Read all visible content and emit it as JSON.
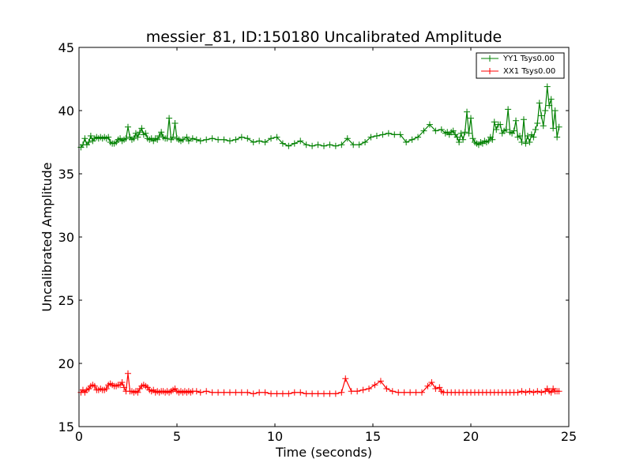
{
  "chart_data": {
    "type": "line",
    "title": "messier_81, ID:150180 Uncalibrated Amplitude",
    "xlabel": "Time (seconds)",
    "ylabel": "Uncalibrated Amplitude",
    "xlim": [
      0,
      25
    ],
    "ylim": [
      15,
      45
    ],
    "xticks": [
      0,
      5,
      10,
      15,
      20,
      25
    ],
    "yticks": [
      15,
      20,
      25,
      30,
      35,
      40,
      45
    ],
    "grid": false,
    "legend_position": "top-right",
    "series": [
      {
        "name": "YY1 Tsys0.00",
        "color": "#008000",
        "marker": "plus",
        "points": [
          [
            0.1,
            37.1
          ],
          [
            0.2,
            37.3
          ],
          [
            0.3,
            37.8
          ],
          [
            0.4,
            37.3
          ],
          [
            0.5,
            37.5
          ],
          [
            0.6,
            38.0
          ],
          [
            0.7,
            37.6
          ],
          [
            0.8,
            37.8
          ],
          [
            0.9,
            37.9
          ],
          [
            1.0,
            37.8
          ],
          [
            1.1,
            37.9
          ],
          [
            1.2,
            37.8
          ],
          [
            1.3,
            37.9
          ],
          [
            1.4,
            37.8
          ],
          [
            1.5,
            37.9
          ],
          [
            1.6,
            37.5
          ],
          [
            1.7,
            37.4
          ],
          [
            1.8,
            37.4
          ],
          [
            1.9,
            37.5
          ],
          [
            2.0,
            37.7
          ],
          [
            2.1,
            37.8
          ],
          [
            2.2,
            37.6
          ],
          [
            2.3,
            37.7
          ],
          [
            2.4,
            37.8
          ],
          [
            2.5,
            38.7
          ],
          [
            2.6,
            37.9
          ],
          [
            2.7,
            37.7
          ],
          [
            2.8,
            37.8
          ],
          [
            2.9,
            38.2
          ],
          [
            3.0,
            37.9
          ],
          [
            3.1,
            38.3
          ],
          [
            3.2,
            38.6
          ],
          [
            3.3,
            38.1
          ],
          [
            3.4,
            38.2
          ],
          [
            3.5,
            37.8
          ],
          [
            3.6,
            37.7
          ],
          [
            3.7,
            37.8
          ],
          [
            3.8,
            37.6
          ],
          [
            3.9,
            37.8
          ],
          [
            4.0,
            37.7
          ],
          [
            4.1,
            38.0
          ],
          [
            4.2,
            38.3
          ],
          [
            4.3,
            37.9
          ],
          [
            4.4,
            37.8
          ],
          [
            4.5,
            37.8
          ],
          [
            4.6,
            39.4
          ],
          [
            4.7,
            37.7
          ],
          [
            4.8,
            37.9
          ],
          [
            4.9,
            39.0
          ],
          [
            5.0,
            37.8
          ],
          [
            5.1,
            37.7
          ],
          [
            5.2,
            37.6
          ],
          [
            5.3,
            37.7
          ],
          [
            5.5,
            37.9
          ],
          [
            5.6,
            37.6
          ],
          [
            5.8,
            37.8
          ],
          [
            6.0,
            37.7
          ],
          [
            6.2,
            37.6
          ],
          [
            6.5,
            37.7
          ],
          [
            6.8,
            37.8
          ],
          [
            7.1,
            37.7
          ],
          [
            7.4,
            37.7
          ],
          [
            7.7,
            37.6
          ],
          [
            8.0,
            37.7
          ],
          [
            8.3,
            37.9
          ],
          [
            8.6,
            37.8
          ],
          [
            8.9,
            37.5
          ],
          [
            9.2,
            37.6
          ],
          [
            9.5,
            37.5
          ],
          [
            9.8,
            37.8
          ],
          [
            10.1,
            37.9
          ],
          [
            10.4,
            37.4
          ],
          [
            10.7,
            37.2
          ],
          [
            11.0,
            37.4
          ],
          [
            11.3,
            37.6
          ],
          [
            11.6,
            37.3
          ],
          [
            11.9,
            37.2
          ],
          [
            12.2,
            37.3
          ],
          [
            12.5,
            37.2
          ],
          [
            12.8,
            37.3
          ],
          [
            13.1,
            37.2
          ],
          [
            13.4,
            37.3
          ],
          [
            13.7,
            37.8
          ],
          [
            14.0,
            37.3
          ],
          [
            14.3,
            37.3
          ],
          [
            14.6,
            37.5
          ],
          [
            14.9,
            37.9
          ],
          [
            15.2,
            38.0
          ],
          [
            15.5,
            38.1
          ],
          [
            15.8,
            38.2
          ],
          [
            16.1,
            38.1
          ],
          [
            16.4,
            38.1
          ],
          [
            16.7,
            37.5
          ],
          [
            17.0,
            37.7
          ],
          [
            17.3,
            37.9
          ],
          [
            17.6,
            38.4
          ],
          [
            17.9,
            38.9
          ],
          [
            18.2,
            38.4
          ],
          [
            18.5,
            38.5
          ],
          [
            18.7,
            38.2
          ],
          [
            18.8,
            38.3
          ],
          [
            18.9,
            38.1
          ],
          [
            19.0,
            38.3
          ],
          [
            19.1,
            38.4
          ],
          [
            19.2,
            38.1
          ],
          [
            19.3,
            37.9
          ],
          [
            19.4,
            37.5
          ],
          [
            19.5,
            38.2
          ],
          [
            19.6,
            37.7
          ],
          [
            19.7,
            38.3
          ],
          [
            19.8,
            39.9
          ],
          [
            19.9,
            38.2
          ],
          [
            20.0,
            39.4
          ],
          [
            20.1,
            37.8
          ],
          [
            20.2,
            37.5
          ],
          [
            20.3,
            37.4
          ],
          [
            20.4,
            37.3
          ],
          [
            20.5,
            37.5
          ],
          [
            20.6,
            37.4
          ],
          [
            20.7,
            37.6
          ],
          [
            20.8,
            37.5
          ],
          [
            20.9,
            37.6
          ],
          [
            21.0,
            37.9
          ],
          [
            21.1,
            37.7
          ],
          [
            21.2,
            39.1
          ],
          [
            21.3,
            38.5
          ],
          [
            21.4,
            38.9
          ],
          [
            21.5,
            38.9
          ],
          [
            21.6,
            38.2
          ],
          [
            21.7,
            38.4
          ],
          [
            21.8,
            38.5
          ],
          [
            21.9,
            40.1
          ],
          [
            22.0,
            38.3
          ],
          [
            22.1,
            38.2
          ],
          [
            22.2,
            38.4
          ],
          [
            22.3,
            39.2
          ],
          [
            22.4,
            37.9
          ],
          [
            22.5,
            38.0
          ],
          [
            22.6,
            37.5
          ],
          [
            22.7,
            39.3
          ],
          [
            22.8,
            37.4
          ],
          [
            22.9,
            38.0
          ],
          [
            23.0,
            37.5
          ],
          [
            23.1,
            38.1
          ],
          [
            23.2,
            37.9
          ],
          [
            23.3,
            38.5
          ],
          [
            23.4,
            39.0
          ],
          [
            23.5,
            40.6
          ],
          [
            23.6,
            39.6
          ],
          [
            23.7,
            38.8
          ],
          [
            23.8,
            40.0
          ],
          [
            23.9,
            41.9
          ],
          [
            24.0,
            40.4
          ],
          [
            24.1,
            40.9
          ],
          [
            24.2,
            38.6
          ],
          [
            24.3,
            40.0
          ],
          [
            24.4,
            37.9
          ],
          [
            24.5,
            38.7
          ]
        ]
      },
      {
        "name": "XX1 Tsys0.00",
        "color": "#ff0000",
        "marker": "plus",
        "points": [
          [
            0.1,
            17.7
          ],
          [
            0.2,
            17.9
          ],
          [
            0.3,
            17.7
          ],
          [
            0.4,
            17.9
          ],
          [
            0.5,
            18.0
          ],
          [
            0.6,
            18.2
          ],
          [
            0.7,
            18.3
          ],
          [
            0.8,
            18.2
          ],
          [
            0.9,
            17.9
          ],
          [
            1.0,
            17.9
          ],
          [
            1.1,
            18.0
          ],
          [
            1.2,
            17.9
          ],
          [
            1.3,
            17.9
          ],
          [
            1.4,
            18.0
          ],
          [
            1.5,
            18.3
          ],
          [
            1.6,
            18.4
          ],
          [
            1.7,
            18.3
          ],
          [
            1.8,
            18.2
          ],
          [
            1.9,
            18.2
          ],
          [
            2.0,
            18.3
          ],
          [
            2.1,
            18.3
          ],
          [
            2.2,
            18.5
          ],
          [
            2.3,
            18.1
          ],
          [
            2.4,
            17.8
          ],
          [
            2.5,
            19.2
          ],
          [
            2.6,
            17.8
          ],
          [
            2.7,
            17.8
          ],
          [
            2.8,
            17.7
          ],
          [
            2.9,
            17.8
          ],
          [
            3.0,
            17.7
          ],
          [
            3.1,
            18.0
          ],
          [
            3.2,
            18.2
          ],
          [
            3.3,
            18.3
          ],
          [
            3.4,
            18.2
          ],
          [
            3.5,
            18.1
          ],
          [
            3.6,
            17.9
          ],
          [
            3.7,
            17.8
          ],
          [
            3.8,
            17.9
          ],
          [
            3.9,
            17.7
          ],
          [
            4.0,
            17.8
          ],
          [
            4.1,
            17.7
          ],
          [
            4.2,
            17.8
          ],
          [
            4.3,
            17.8
          ],
          [
            4.4,
            17.7
          ],
          [
            4.5,
            17.8
          ],
          [
            4.6,
            17.7
          ],
          [
            4.7,
            17.8
          ],
          [
            4.8,
            17.9
          ],
          [
            4.9,
            18.0
          ],
          [
            5.0,
            17.8
          ],
          [
            5.1,
            17.7
          ],
          [
            5.2,
            17.8
          ],
          [
            5.3,
            17.7
          ],
          [
            5.4,
            17.8
          ],
          [
            5.5,
            17.7
          ],
          [
            5.6,
            17.8
          ],
          [
            5.7,
            17.7
          ],
          [
            5.8,
            17.8
          ],
          [
            6.0,
            17.8
          ],
          [
            6.2,
            17.7
          ],
          [
            6.5,
            17.8
          ],
          [
            6.8,
            17.7
          ],
          [
            7.1,
            17.7
          ],
          [
            7.4,
            17.7
          ],
          [
            7.7,
            17.7
          ],
          [
            8.0,
            17.7
          ],
          [
            8.3,
            17.7
          ],
          [
            8.6,
            17.7
          ],
          [
            8.9,
            17.6
          ],
          [
            9.2,
            17.7
          ],
          [
            9.5,
            17.7
          ],
          [
            9.8,
            17.6
          ],
          [
            10.1,
            17.6
          ],
          [
            10.4,
            17.6
          ],
          [
            10.7,
            17.6
          ],
          [
            11.0,
            17.7
          ],
          [
            11.3,
            17.7
          ],
          [
            11.6,
            17.6
          ],
          [
            11.9,
            17.6
          ],
          [
            12.2,
            17.6
          ],
          [
            12.5,
            17.6
          ],
          [
            12.8,
            17.6
          ],
          [
            13.1,
            17.6
          ],
          [
            13.4,
            17.7
          ],
          [
            13.6,
            18.8
          ],
          [
            13.9,
            17.8
          ],
          [
            14.2,
            17.8
          ],
          [
            14.5,
            17.9
          ],
          [
            14.8,
            18.0
          ],
          [
            15.1,
            18.3
          ],
          [
            15.4,
            18.6
          ],
          [
            15.7,
            18.0
          ],
          [
            16.0,
            17.8
          ],
          [
            16.3,
            17.7
          ],
          [
            16.6,
            17.7
          ],
          [
            16.9,
            17.7
          ],
          [
            17.2,
            17.7
          ],
          [
            17.5,
            17.7
          ],
          [
            17.8,
            18.2
          ],
          [
            18.0,
            18.5
          ],
          [
            18.2,
            18.0
          ],
          [
            18.4,
            18.1
          ],
          [
            18.5,
            17.8
          ],
          [
            18.6,
            17.7
          ],
          [
            18.8,
            17.7
          ],
          [
            19.0,
            17.7
          ],
          [
            19.2,
            17.7
          ],
          [
            19.4,
            17.7
          ],
          [
            19.6,
            17.7
          ],
          [
            19.8,
            17.7
          ],
          [
            20.0,
            17.7
          ],
          [
            20.2,
            17.7
          ],
          [
            20.4,
            17.7
          ],
          [
            20.6,
            17.7
          ],
          [
            20.8,
            17.7
          ],
          [
            21.0,
            17.7
          ],
          [
            21.2,
            17.7
          ],
          [
            21.4,
            17.7
          ],
          [
            21.6,
            17.7
          ],
          [
            21.8,
            17.7
          ],
          [
            22.0,
            17.7
          ],
          [
            22.2,
            17.7
          ],
          [
            22.4,
            17.7
          ],
          [
            22.6,
            17.8
          ],
          [
            22.8,
            17.7
          ],
          [
            23.0,
            17.8
          ],
          [
            23.2,
            17.7
          ],
          [
            23.4,
            17.8
          ],
          [
            23.6,
            17.7
          ],
          [
            23.8,
            17.8
          ],
          [
            23.9,
            18.0
          ],
          [
            24.0,
            17.8
          ],
          [
            24.1,
            17.7
          ],
          [
            24.2,
            18.0
          ],
          [
            24.3,
            17.8
          ],
          [
            24.4,
            17.8
          ],
          [
            24.5,
            17.8
          ]
        ]
      }
    ]
  }
}
